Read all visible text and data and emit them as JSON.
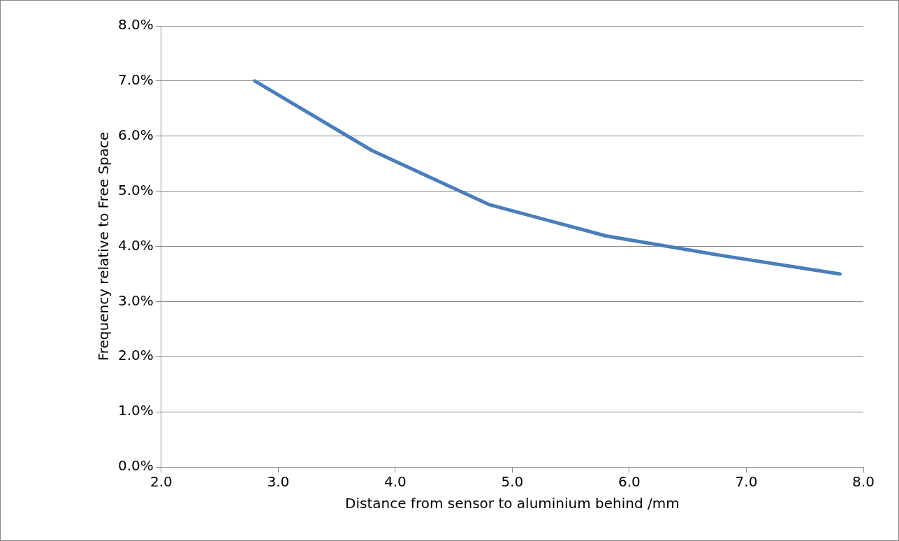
{
  "chart_data": {
    "type": "line",
    "xlabel": "Distance from sensor to aluminium behind /mm",
    "ylabel": "Frequency relative to Free Space",
    "x": [
      2.8,
      3.8,
      4.8,
      5.8,
      6.8,
      7.8
    ],
    "series": [
      {
        "color": "#4a7ebb",
        "values": [
          7.0,
          5.74,
          4.76,
          4.19,
          3.83,
          3.5
        ]
      }
    ],
    "xlim": [
      2,
      8
    ],
    "xticks": [
      {
        "value": 2,
        "label": "2.0"
      },
      {
        "value": 3,
        "label": "3.0"
      },
      {
        "value": 4,
        "label": "4.0"
      },
      {
        "value": 5,
        "label": "5.0"
      },
      {
        "value": 6,
        "label": "6.0"
      },
      {
        "value": 7,
        "label": "7.0"
      },
      {
        "value": 8,
        "label": "8.0"
      }
    ],
    "ylim": [
      0,
      8
    ],
    "yticks": [
      {
        "value": 0,
        "label": "0.0%"
      },
      {
        "value": 1,
        "label": "1.0%"
      },
      {
        "value": 2,
        "label": "2.0%"
      },
      {
        "value": 3,
        "label": "3.0%"
      },
      {
        "value": 4,
        "label": "4.0%"
      },
      {
        "value": 5,
        "label": "5.0%"
      },
      {
        "value": 6,
        "label": "6.0%"
      },
      {
        "value": 7,
        "label": "7.0%"
      },
      {
        "value": 8,
        "label": "8.0%"
      }
    ],
    "grid": "y",
    "legend": false,
    "marker": "none",
    "line_style": "solid"
  }
}
